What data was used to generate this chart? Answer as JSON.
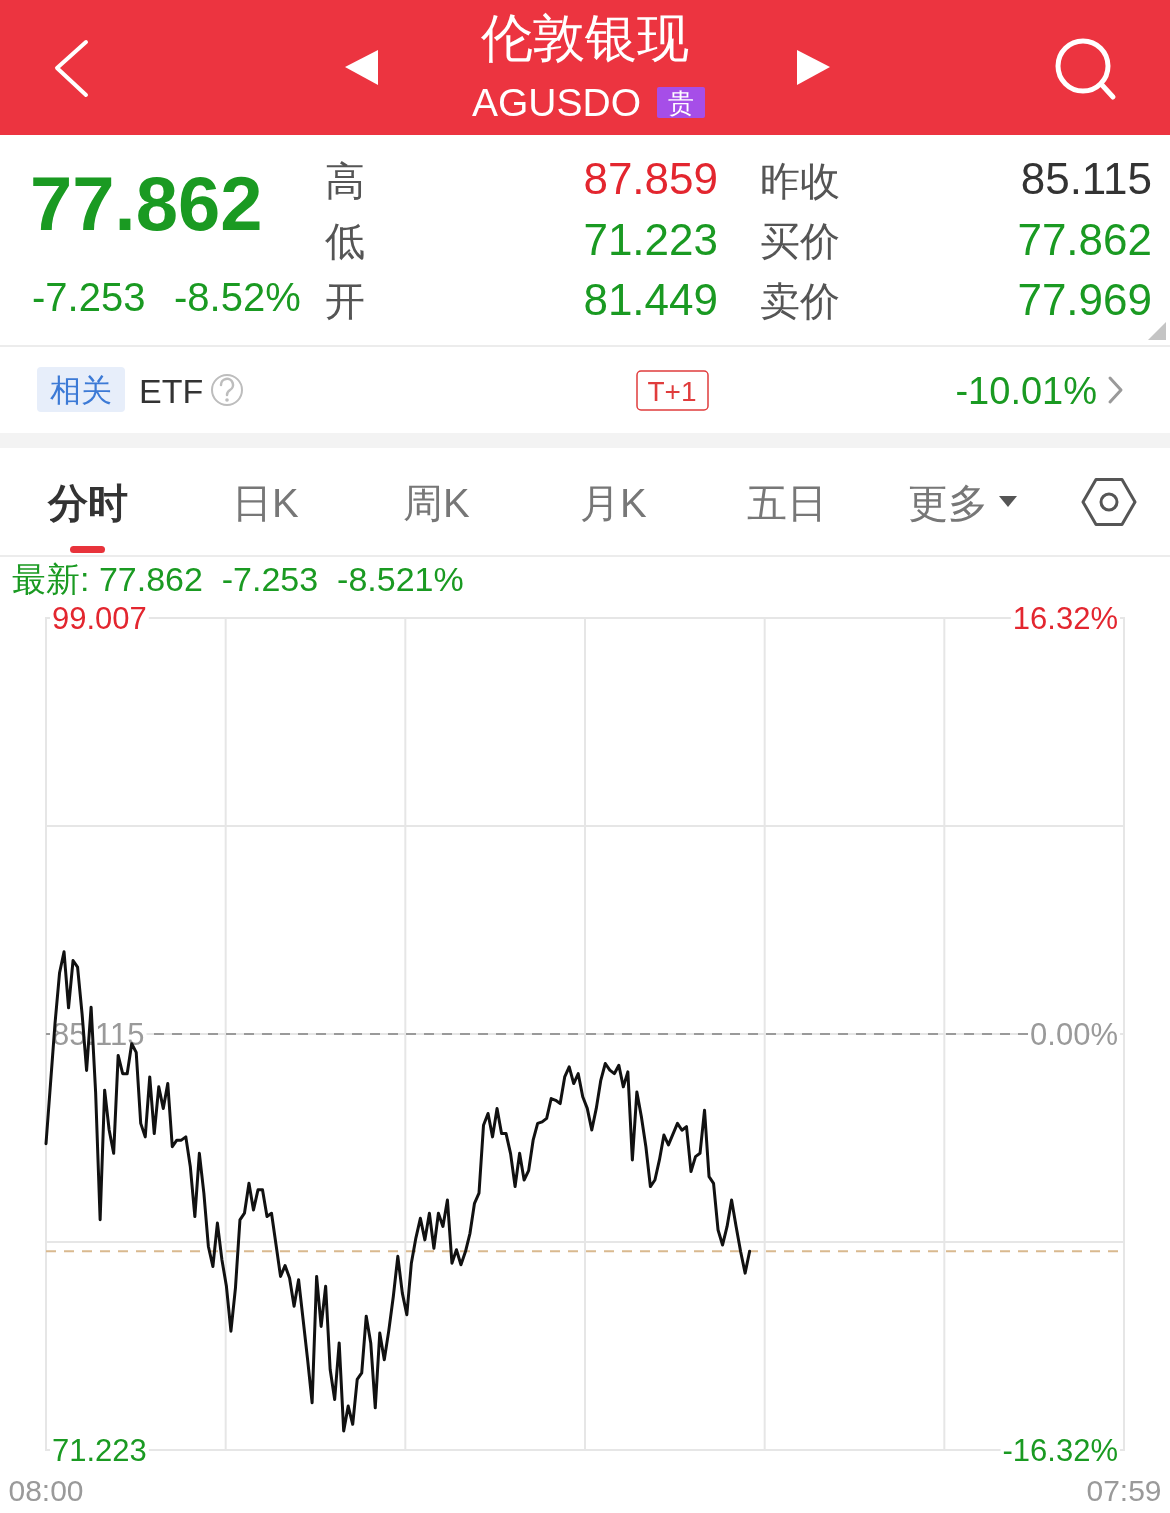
{
  "chart_data": {
    "type": "line",
    "title": "伦敦银现",
    "subtitle": "AGUSDO",
    "annotations": [
      "贵",
      "77.862",
      "-7.253",
      "-8.52%",
      "高",
      "低",
      "开",
      "87.859",
      "71.223",
      "81.449",
      "昨收",
      "买价",
      "卖价",
      "85.115",
      "77.862",
      "77.969",
      "相关",
      "ETF",
      "T+1",
      "-10.01%",
      "分时",
      "日K",
      "周K",
      "月K",
      "五日",
      "更多",
      "最新: 77.862  -7.253  -8.521%"
    ],
    "categories": [
      "08:00",
      null,
      null,
      null,
      null,
      null,
      null,
      null,
      null,
      null,
      null,
      null,
      null,
      null,
      null,
      null,
      null,
      null,
      null,
      null,
      null,
      null,
      null,
      null,
      null,
      null,
      null,
      null,
      null,
      null,
      null,
      null,
      null,
      null,
      null,
      null,
      null,
      null,
      null,
      null,
      null,
      null,
      null,
      null,
      null,
      null,
      null,
      null,
      null,
      null,
      null,
      null,
      null,
      null,
      null,
      null,
      null,
      null,
      null,
      null,
      null,
      null,
      null,
      null,
      null,
      null,
      null,
      null,
      null,
      null,
      null,
      null,
      null,
      null,
      null,
      null,
      null,
      null,
      null,
      null,
      null,
      null,
      null,
      null,
      null,
      null,
      null,
      null,
      null,
      null,
      null,
      null,
      null,
      null,
      null,
      null,
      null,
      null,
      null,
      null,
      null,
      null,
      null,
      null,
      null,
      null,
      null,
      null,
      null,
      null,
      null,
      null,
      null,
      null,
      null,
      null,
      null,
      null,
      null,
      null,
      null,
      null,
      null,
      null,
      null,
      null,
      null,
      null,
      null,
      null,
      null,
      null,
      null,
      null,
      null,
      null,
      null,
      null,
      null,
      null,
      null,
      null,
      null,
      null,
      null,
      null,
      null,
      null,
      null,
      null,
      null,
      null,
      null,
      null,
      null,
      null,
      null,
      null,
      null,
      null,
      null,
      null,
      null,
      null,
      null,
      null,
      null,
      null,
      null,
      null,
      null,
      null,
      null,
      null,
      null,
      null,
      null,
      null,
      null,
      null,
      null,
      null,
      null,
      null,
      null,
      null,
      null,
      null,
      null,
      null,
      null,
      null,
      null,
      null,
      null,
      null,
      null,
      null,
      null,
      null,
      null,
      null,
      null,
      null,
      null,
      null,
      null,
      null,
      null,
      null,
      null,
      null,
      null,
      null,
      null,
      null,
      null,
      null,
      null,
      null,
      null,
      null,
      null,
      null,
      null,
      null,
      null,
      null,
      null,
      null,
      null,
      null,
      null,
      null,
      null,
      null,
      null,
      null,
      null,
      "07:59"
    ],
    "values": [
      81.45,
      83.46,
      85.47,
      87.15,
      87.86,
      85.99,
      87.57,
      87.35,
      85.79,
      83.9,
      86.01,
      83.17,
      78.91,
      83.24,
      81.91,
      81.13,
      84.4,
      83.79,
      83.79,
      84.79,
      84.5,
      82.13,
      81.68,
      83.68,
      81.79,
      83.35,
      82.63,
      83.46,
      81.35,
      81.57,
      81.57,
      81.68,
      80.68,
      79.02,
      81.13,
      79.8,
      78.02,
      77.35,
      78.8,
      77.58,
      76.69,
      75.19,
      76.63,
      78.91,
      79.13,
      80.13,
      79.24,
      79.91,
      79.91,
      79.02,
      79.13,
      78.08,
      77.02,
      77.38,
      76.97,
      76.02,
      76.91,
      75.58,
      74.24,
      72.8,
      77.02,
      75.35,
      76.69,
      73.91,
      72.91,
      74.8,
      71.86,
      72.69,
      72.08,
      73.58,
      73.8,
      75.69,
      74.8,
      72.63,
      75.13,
      74.24,
      75.21,
      76.35,
      77.69,
      76.46,
      75.74,
      77.46,
      78.3,
      78.96,
      78.24,
      79.13,
      77.96,
      79.13,
      78.69,
      79.57,
      77.46,
      77.91,
      77.41,
      77.85,
      78.46,
      79.46,
      79.8,
      82.07,
      82.46,
      81.68,
      82.63,
      81.79,
      81.79,
      81.12,
      80.02,
      81.13,
      80.24,
      80.55,
      81.57,
      82.13,
      82.18,
      82.3,
      82.96,
      82.9,
      82.79,
      83.68,
      84.02,
      83.46,
      83.79,
      83.02,
      82.63,
      81.91,
      82.63,
      83.57,
      84.13,
      83.91,
      83.79,
      84.07,
      83.35,
      83.85,
      80.91,
      83.18,
      82.35,
      81.35,
      80.02,
      80.24,
      80.91,
      81.74,
      81.41,
      81.77,
      82.13,
      81.9,
      82.02,
      80.52,
      81.02,
      81.13,
      82.57,
      80.35,
      80.13,
      78.57,
      78.07,
      78.69,
      79.57,
      78.69,
      77.85,
      77.13,
      77.86,
      null,
      null,
      null,
      null,
      null,
      null,
      null,
      null,
      null,
      null,
      null,
      null,
      null,
      null,
      null,
      null,
      null,
      null,
      null,
      null,
      null,
      null,
      null,
      null,
      null,
      null,
      null,
      null,
      null,
      null,
      null,
      null,
      null,
      null,
      null,
      null,
      null,
      null,
      null,
      null,
      null,
      null,
      null,
      null,
      null,
      null,
      null,
      null,
      null,
      null,
      null,
      null,
      null,
      null,
      null,
      null,
      null,
      null,
      null,
      null,
      null,
      null,
      null,
      null,
      null,
      null,
      null,
      null,
      null,
      null,
      null,
      null,
      null,
      null,
      null,
      null,
      null,
      null,
      null,
      null,
      null,
      null,
      null
    ],
    "color": "#111111",
    "ylim": [
      71.223,
      99.007
    ],
    "yticks": [
      99.007,
      {
        "value": 92.061,
        "label": null
      },
      85.115,
      {
        "value": 78.169,
        "label": null
      },
      71.223
    ],
    "y2lim": [
      -16.32,
      16.32
    ],
    "y2ticks": [
      {
        "value": 16.32,
        "label": "16.32%"
      },
      {
        "value": 0,
        "label": "0.00%"
      },
      {
        "value": -16.32,
        "label": "-16.32%"
      }
    ],
    "ref_lines": [
      {
        "axis": "y",
        "value": 85.115,
        "color": "#9a9a9a",
        "line_style": "dashed"
      },
      {
        "axis": "y",
        "value": 77.862,
        "color": "#d9b98f",
        "line_style": "dashed"
      }
    ],
    "grid": true
  }
}
